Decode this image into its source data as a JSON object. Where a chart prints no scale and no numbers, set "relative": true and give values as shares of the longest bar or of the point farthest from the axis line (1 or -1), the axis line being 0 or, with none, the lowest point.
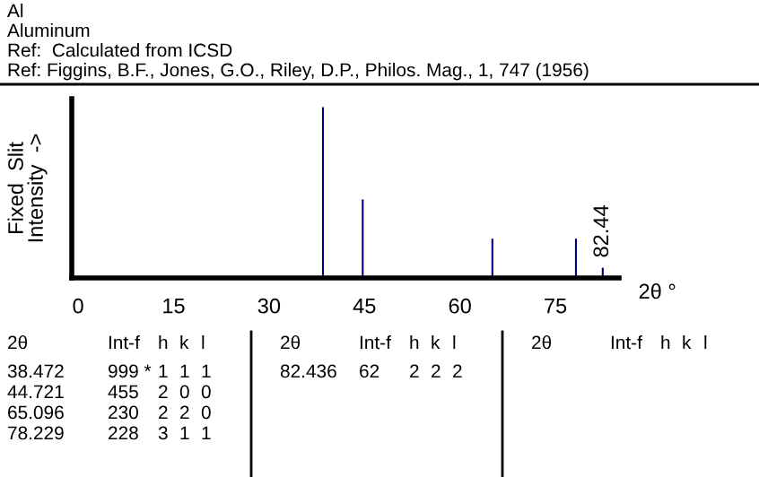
{
  "chart_data": {
    "type": "bar",
    "title": "Al",
    "subtitle": "Aluminum",
    "xlabel": "2θ °",
    "ylabel": "Fixed  Slit\nIntensity  ->",
    "x": [
      38.472,
      44.721,
      65.096,
      78.229,
      82.436
    ],
    "values": [
      1,
      0.46,
      0.23,
      0.23,
      0.06
    ],
    "relative": true,
    "color": "#000080",
    "xlim": [
      -1,
      85
    ],
    "xticks": [
      0,
      15,
      30,
      45,
      60,
      75
    ],
    "tick_labels": "x",
    "grid": false,
    "annotations": [
      "Ref:  Calculated from ICSD",
      "Ref: Figgins, B.F., Jones, G.O., Riley, D.P., Philos. Mag., 1, 747 (1956)",
      {
        "text": "82.44",
        "x": 82.436,
        "y": 0.06
      },
      "2θ\tInt-f\th\tk\tl",
      "38.472\t999 *\t1\t1\t1",
      "44.721\t455\t2\t0\t0",
      "65.096\t230\t2\t2\t0",
      "78.229\t228\t3\t1\t1",
      "2θ\tInt-f\th\tk\tl",
      "82.436\t62\t2\t2\t2",
      "2θ\tInt-f\th\tk\tl"
    ]
  }
}
